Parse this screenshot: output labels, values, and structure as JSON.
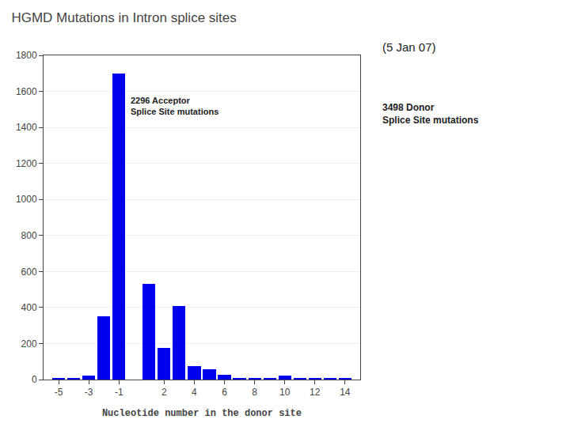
{
  "chart_data": {
    "type": "bar",
    "title": "HGMD Mutations in Intron splice sites",
    "subtitle": "(5 Jan 07)",
    "xlabel": "Nucleotide number in the donor site",
    "annotations": [
      "2296 Acceptor\nSplice Site mutations",
      "3498 Donor\nSplice Site mutations"
    ],
    "x": [
      -5,
      -4,
      -3,
      -2,
      -1,
      1,
      2,
      3,
      4,
      5,
      6,
      7,
      8,
      9,
      10,
      11,
      12,
      13,
      14
    ],
    "values": [
      5,
      5,
      20,
      350,
      1700,
      530,
      175,
      410,
      75,
      55,
      25,
      10,
      8,
      8,
      20,
      5,
      10,
      5,
      5
    ],
    "color": "#0000EE",
    "xlim": [
      -6,
      15
    ],
    "xticks": [
      -5,
      -3,
      -1,
      2,
      4,
      6,
      8,
      10,
      12,
      14
    ],
    "ylim": [
      0,
      1800
    ],
    "yticks": [
      0,
      200,
      400,
      600,
      800,
      1000,
      1200,
      1400,
      1600,
      1800
    ],
    "grid": true
  }
}
